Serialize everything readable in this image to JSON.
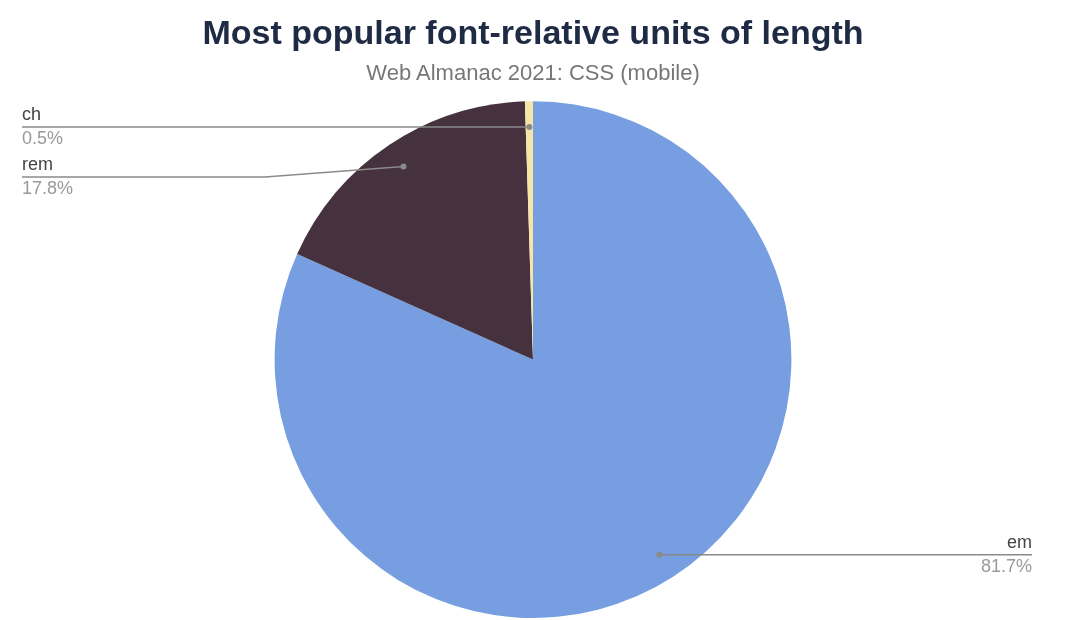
{
  "chart_data": {
    "type": "pie",
    "title": "Most popular font-relative units of length",
    "subtitle": "Web Almanac 2021: CSS (mobile)",
    "categories": [
      "em",
      "rem",
      "ch"
    ],
    "values": [
      81.7,
      17.8,
      0.5
    ],
    "value_labels": [
      "81.7%",
      "17.8%",
      "0.5%"
    ],
    "colors": [
      "#779ee0",
      "#45323e",
      "#f5e6a8"
    ],
    "legend": false
  }
}
